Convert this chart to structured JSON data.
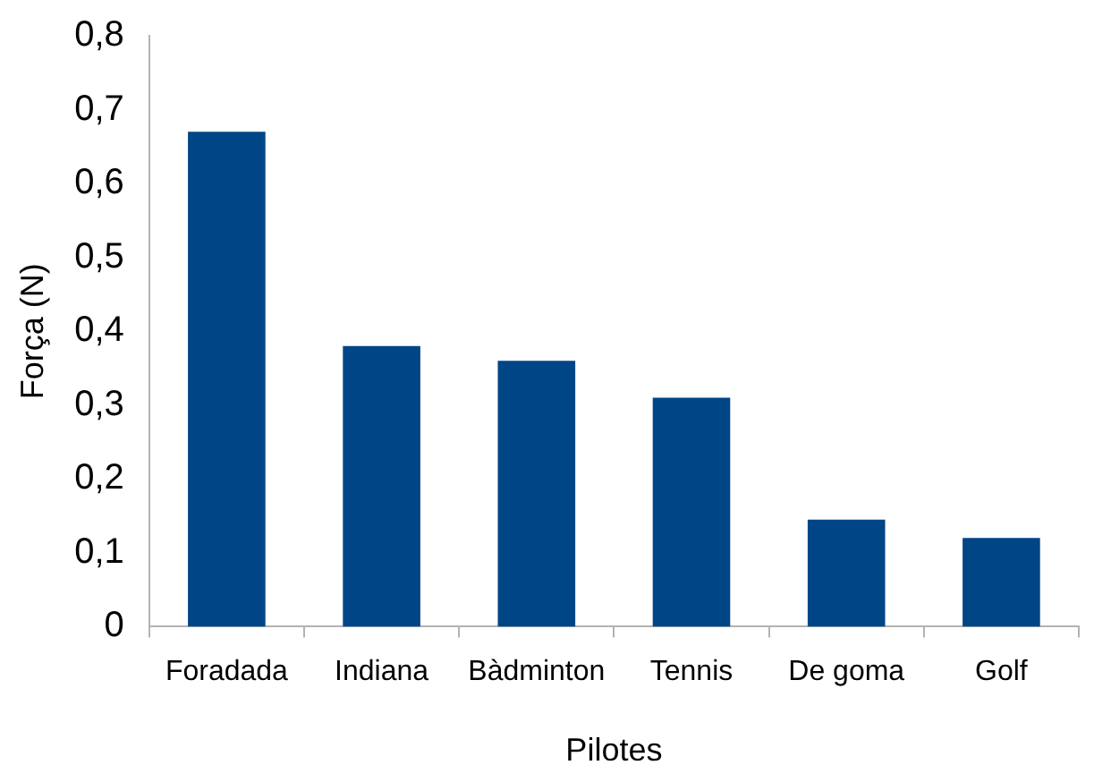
{
  "chart_data": {
    "type": "bar",
    "xlabel": "Pilotes",
    "ylabel": "Força (N)",
    "categories": [
      "Foradada",
      "Indiana",
      "Bàdminton",
      "Tennis",
      "De goma",
      "Golf"
    ],
    "values": [
      0.67,
      0.38,
      0.36,
      0.31,
      0.145,
      0.12
    ],
    "color": "#004586",
    "ylim": [
      0,
      0.8
    ],
    "yticks": [
      {
        "value": 0,
        "label": "0"
      },
      {
        "value": 0.1,
        "label": "0,1"
      },
      {
        "value": 0.2,
        "label": "0,2"
      },
      {
        "value": 0.3,
        "label": "0,3"
      },
      {
        "value": 0.4,
        "label": "0,4"
      },
      {
        "value": 0.5,
        "label": "0,5"
      },
      {
        "value": 0.6,
        "label": "0,6"
      },
      {
        "value": 0.7,
        "label": "0,7"
      },
      {
        "value": 0.8,
        "label": "0,8"
      }
    ],
    "grid": false,
    "legend": false
  }
}
